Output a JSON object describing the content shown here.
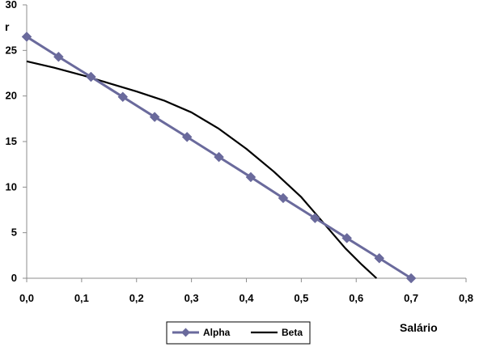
{
  "chart_data": {
    "type": "line",
    "title": "",
    "xlabel": "Salário",
    "ylabel": "r",
    "xlim": [
      0,
      0.8
    ],
    "ylim": [
      0,
      30
    ],
    "x_ticks": [
      0,
      0.1,
      0.2,
      0.3,
      0.4,
      0.5,
      0.6,
      0.7,
      0.8
    ],
    "x_tick_labels": [
      "0,0",
      "0,1",
      "0,2",
      "0,3",
      "0,4",
      "0,5",
      "0,6",
      "0,7",
      "0,8"
    ],
    "y_ticks": [
      0,
      5,
      10,
      15,
      20,
      25,
      30
    ],
    "y_tick_labels": [
      "0",
      "5",
      "10",
      "15",
      "20",
      "25",
      "30"
    ],
    "grid": false,
    "legend_position": "bottom",
    "series": [
      {
        "name": "Alpha",
        "color": "#6a6a9c",
        "marker": "diamond",
        "x": [
          0.0,
          0.058,
          0.117,
          0.175,
          0.233,
          0.292,
          0.35,
          0.408,
          0.467,
          0.525,
          0.583,
          0.642,
          0.7
        ],
        "y": [
          26.5,
          24.3,
          22.1,
          19.9,
          17.7,
          15.5,
          13.3,
          11.1,
          8.8,
          6.6,
          4.4,
          2.2,
          0.0
        ]
      },
      {
        "name": "Beta",
        "color": "#000000",
        "marker": "none",
        "x": [
          0.0,
          0.05,
          0.1,
          0.15,
          0.2,
          0.25,
          0.3,
          0.35,
          0.4,
          0.45,
          0.5,
          0.55,
          0.58,
          0.61,
          0.637
        ],
        "y": [
          23.8,
          23.1,
          22.3,
          21.4,
          20.5,
          19.5,
          18.2,
          16.4,
          14.2,
          11.7,
          8.9,
          5.4,
          3.3,
          1.5,
          0.0
        ]
      }
    ]
  }
}
